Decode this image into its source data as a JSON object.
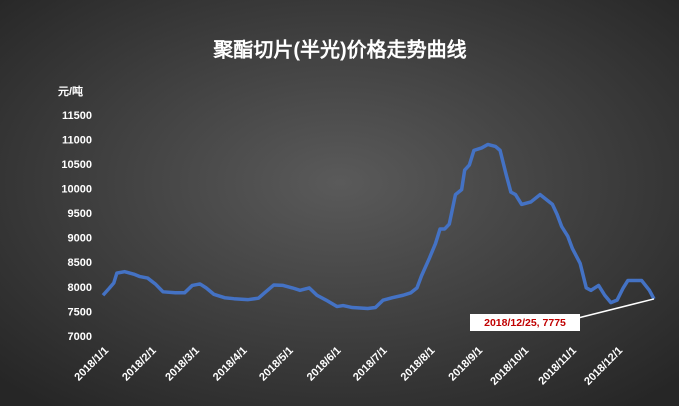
{
  "chart_data": {
    "type": "line",
    "title": "聚酯切片(半光)价格走势曲线",
    "y_label": "元/吨",
    "x": [
      "2018/1/1",
      "2018/1/5",
      "2018/1/8",
      "2018/1/10",
      "2018/1/15",
      "2018/1/21",
      "2018/1/25",
      "2018/1/30",
      "2018/2/4",
      "2018/2/9",
      "2018/2/17",
      "2018/2/23",
      "2018/2/28",
      "2018/3/5",
      "2018/3/9",
      "2018/3/14",
      "2018/3/21",
      "2018/3/27",
      "2018/4/5",
      "2018/4/12",
      "2018/4/16",
      "2018/4/22",
      "2018/4/28",
      "2018/5/4",
      "2018/5/9",
      "2018/5/15",
      "2018/5/20",
      "2018/5/26",
      "2018/6/2",
      "2018/6/6",
      "2018/6/12",
      "2018/6/22",
      "2018/6/27",
      "2018/7/2",
      "2018/7/8",
      "2018/7/15",
      "2018/7/20",
      "2018/7/24",
      "2018/7/27",
      "2018/8/1",
      "2018/8/5",
      "2018/8/8",
      "2018/8/11",
      "2018/8/14",
      "2018/8/18",
      "2018/8/22",
      "2018/8/24",
      "2018/8/27",
      "2018/8/30",
      "2018/9/4",
      "2018/9/8",
      "2018/9/13",
      "2018/9/16",
      "2018/9/20",
      "2018/9/23",
      "2018/9/26",
      "2018/9/30",
      "2018/10/6",
      "2018/10/12",
      "2018/10/16",
      "2018/10/20",
      "2018/10/23",
      "2018/10/26",
      "2018/10/30",
      "2018/11/2",
      "2018/11/7",
      "2018/11/11",
      "2018/11/14",
      "2018/11/19",
      "2018/11/23",
      "2018/11/27",
      "2018/12/1",
      "2018/12/5",
      "2018/12/8",
      "2018/12/12",
      "2018/12/17",
      "2018/12/22",
      "2018/12/25"
    ],
    "series": [
      {
        "color": "#4472c4",
        "values": [
          7850,
          7990,
          8100,
          8300,
          8330,
          8280,
          8230,
          8200,
          8080,
          7920,
          7900,
          7900,
          8050,
          8080,
          8000,
          7870,
          7800,
          7780,
          7760,
          7790,
          7900,
          8060,
          8050,
          8000,
          7950,
          8000,
          7850,
          7750,
          7620,
          7640,
          7600,
          7580,
          7600,
          7750,
          7800,
          7850,
          7900,
          8000,
          8250,
          8600,
          8900,
          9200,
          9200,
          9300,
          9900,
          10000,
          10400,
          10500,
          10800,
          10850,
          10920,
          10880,
          10800,
          10300,
          9950,
          9900,
          9700,
          9750,
          9900,
          9800,
          9700,
          9500,
          9250,
          9050,
          8800,
          8500,
          8000,
          7950,
          8050,
          7850,
          7700,
          7750,
          8000,
          8150,
          8150,
          8150,
          7950,
          7775
        ]
      }
    ],
    "xlim": [
      "2018/1/1",
      "2018/12/25"
    ],
    "xticks": [
      "2018/1/1",
      "2018/2/1",
      "2018/3/1",
      "2018/4/1",
      "2018/5/1",
      "2018/6/1",
      "2018/7/1",
      "2018/8/1",
      "2018/9/1",
      "2018/10/1",
      "2018/11/1",
      "2018/12/1"
    ],
    "ylim": [
      7000,
      11500
    ],
    "yticks": [
      7000,
      7500,
      8000,
      8500,
      9000,
      9500,
      10000,
      10500,
      11000,
      11500
    ],
    "annotation": "2018/12/25, 7775"
  }
}
